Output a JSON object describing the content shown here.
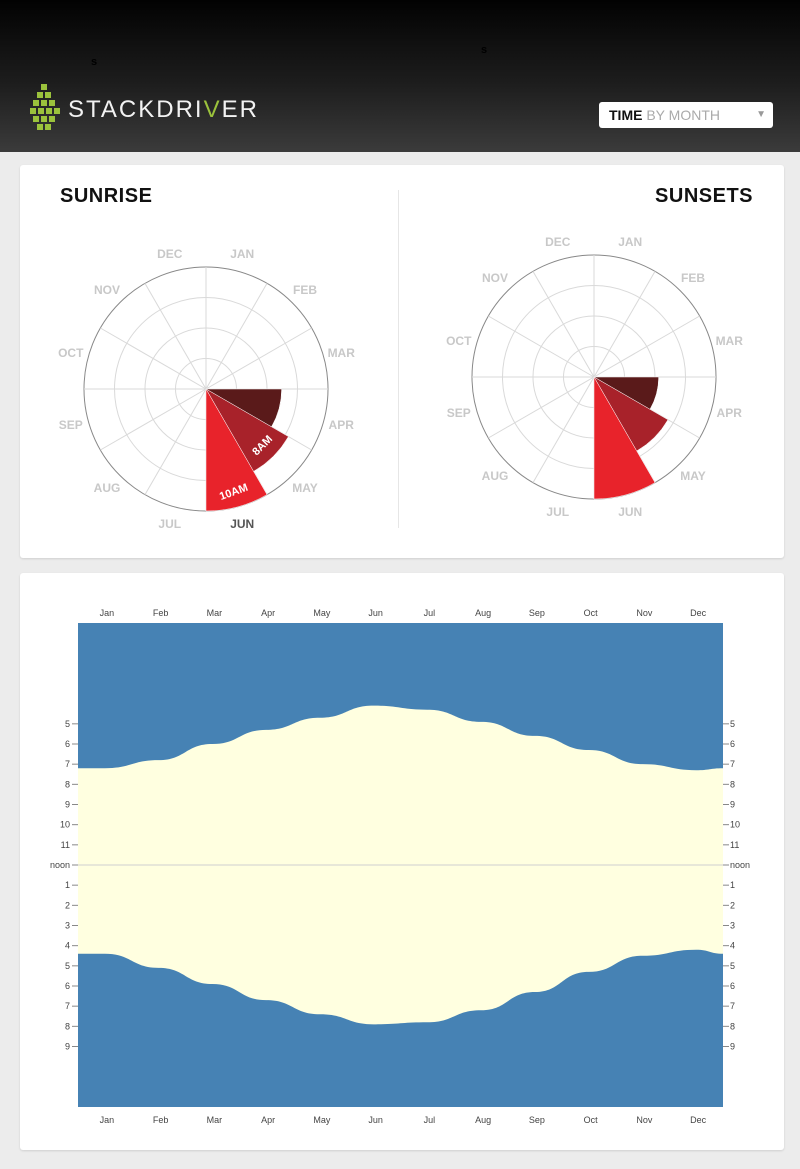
{
  "header": {
    "stray_marks": [
      "s",
      "s"
    ],
    "brand": {
      "before_accent": "STACKDRI",
      "accent": "V",
      "after_accent": "ER"
    },
    "brand_accent_color": "#9bc23c",
    "logo_icon": "cubes-logo-icon"
  },
  "time_select": {
    "key": "TIME",
    "value": "BY MONTH",
    "caret": "▼"
  },
  "colors": {
    "polar_dark": "#5a1a1a",
    "polar_mid": "#a8222a",
    "polar_bright": "#e8232b",
    "band_night": "#4682b4",
    "band_day": "#ffffe0"
  },
  "chart_data": [
    {
      "type": "polar",
      "title": "SUNRISE",
      "categories": [
        "JAN",
        "FEB",
        "MAR",
        "APR",
        "MAY",
        "JUN",
        "JUL",
        "AUG",
        "SEP",
        "OCT",
        "NOV",
        "DEC"
      ],
      "highlighted_category": "JUN",
      "radial_labels": [
        "",
        "8AM",
        "10AM"
      ],
      "values": [
        null,
        null,
        null,
        0.62,
        0.78,
        1.0,
        null,
        null,
        null,
        null,
        null,
        null
      ]
    },
    {
      "type": "polar",
      "title": "SUNSETS",
      "categories": [
        "JAN",
        "FEB",
        "MAR",
        "APR",
        "MAY",
        "JUN",
        "JUL",
        "AUG",
        "SEP",
        "OCT",
        "NOV",
        "DEC"
      ],
      "values": [
        null,
        null,
        null,
        0.53,
        0.7,
        1.0,
        null,
        null,
        null,
        null,
        null,
        null
      ]
    },
    {
      "type": "area",
      "x_categories": [
        "Jan",
        "Feb",
        "Mar",
        "Apr",
        "May",
        "Jun",
        "Jul",
        "Aug",
        "Sep",
        "Oct",
        "Nov",
        "Dec"
      ],
      "y_tick_labels": [
        "5",
        "6",
        "7",
        "8",
        "9",
        "10",
        "11",
        "noon",
        "1",
        "2",
        "3",
        "4",
        "5",
        "6",
        "7",
        "8",
        "9"
      ],
      "y_tick_hours": [
        5,
        6,
        7,
        8,
        9,
        10,
        11,
        12,
        13,
        14,
        15,
        16,
        17,
        18,
        19,
        20,
        21
      ],
      "ylim": [
        0,
        24
      ],
      "series": [
        {
          "x": [
            0,
            1,
            2,
            3,
            4,
            5,
            6,
            7,
            8,
            9,
            10,
            11,
            11.5
          ],
          "sunrise": [
            7.2,
            6.8,
            6.0,
            5.3,
            4.7,
            4.1,
            4.3,
            4.9,
            5.6,
            6.3,
            7.0,
            7.3,
            7.2
          ],
          "sunset": [
            16.4,
            17.1,
            17.9,
            18.7,
            19.4,
            19.9,
            19.8,
            19.2,
            18.3,
            17.3,
            16.5,
            16.2,
            16.4
          ]
        }
      ]
    }
  ]
}
